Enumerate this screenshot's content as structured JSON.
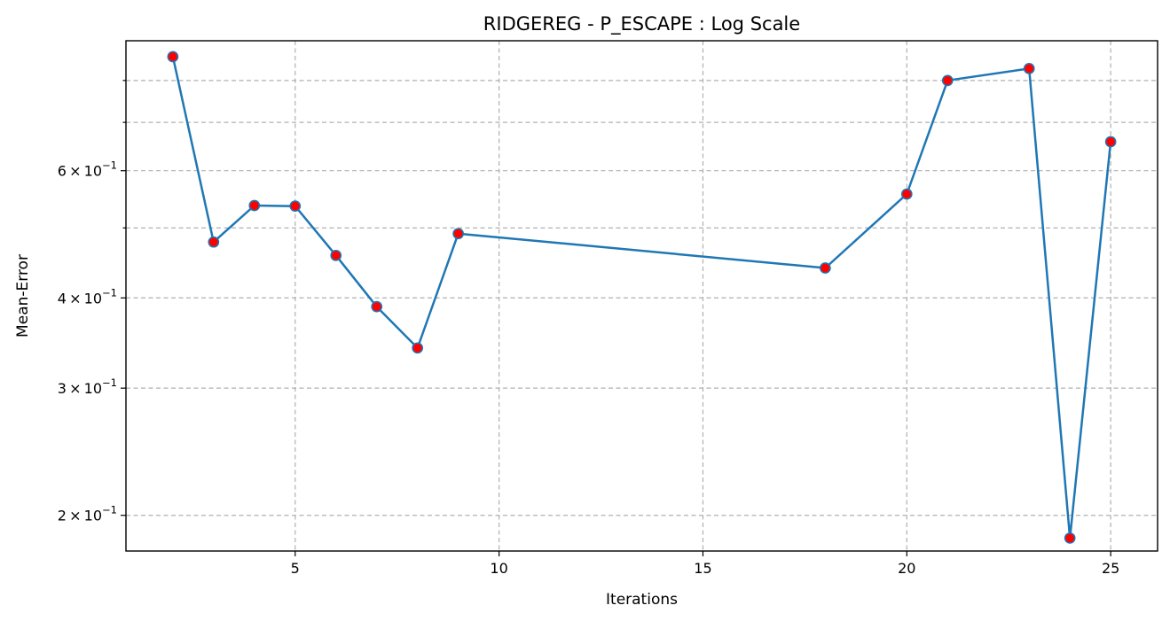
{
  "chart_data": {
    "type": "line",
    "title": "RIDGEREG - P_ESCAPE : Log Scale",
    "xlabel": "Iterations",
    "ylabel": "Mean-Error",
    "yscale": "log",
    "xlim": [
      0.85,
      26.15
    ],
    "ylim": [
      0.1785,
      0.908
    ],
    "grid": true,
    "x_ticks": [
      5,
      10,
      15,
      20,
      25
    ],
    "x_tick_labels": [
      "5",
      "10",
      "15",
      "20",
      "25"
    ],
    "y_major_ticks": [
      0.2,
      0.3,
      0.4,
      0.6
    ],
    "y_major_tick_labels": [
      {
        "mantissa": "2",
        "base": "10",
        "exponent": "−1"
      },
      {
        "mantissa": "3",
        "base": "10",
        "exponent": "−1"
      },
      {
        "mantissa": "4",
        "base": "10",
        "exponent": "−1"
      },
      {
        "mantissa": "6",
        "base": "10",
        "exponent": "−1"
      }
    ],
    "y_minor_ticks": [
      0.5,
      0.7,
      0.8
    ],
    "series": [
      {
        "x": [
          2,
          3,
          4,
          5,
          6,
          7,
          8,
          9,
          18,
          20,
          21,
          23,
          24,
          25
        ],
        "y": [
          0.863,
          0.478,
          0.537,
          0.536,
          0.458,
          0.389,
          0.341,
          0.491,
          0.44,
          0.557,
          0.8,
          0.831,
          0.186,
          0.658
        ],
        "line_color": "#1f77b4",
        "marker_face_color": "#ff0000",
        "marker_edge_color": "#1f77b4"
      }
    ]
  }
}
